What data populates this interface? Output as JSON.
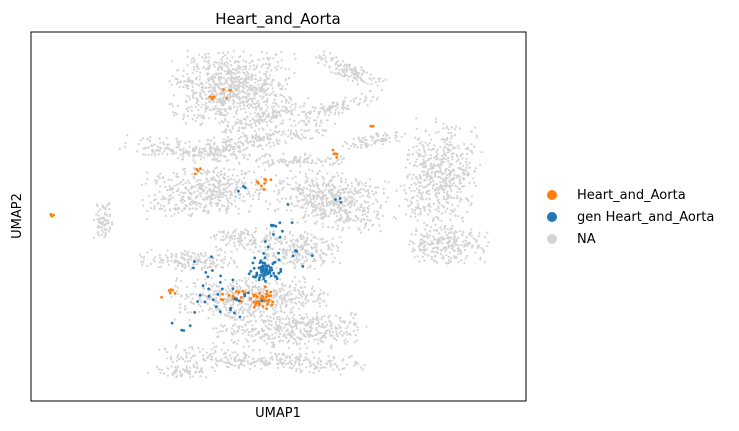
{
  "chart_data": {
    "type": "scatter",
    "title": "Heart_and_Aorta",
    "xlabel": "UMAP1",
    "ylabel": "UMAP2",
    "grid": false,
    "ticks": false,
    "legend_position": "right",
    "series": [
      {
        "name": "Heart_and_Aorta",
        "color": "#ff7f0e"
      },
      {
        "name": "gen Heart_and_Aorta",
        "color": "#1f77b4"
      },
      {
        "name": "NA",
        "color": "#d3d3d3"
      }
    ]
  }
}
